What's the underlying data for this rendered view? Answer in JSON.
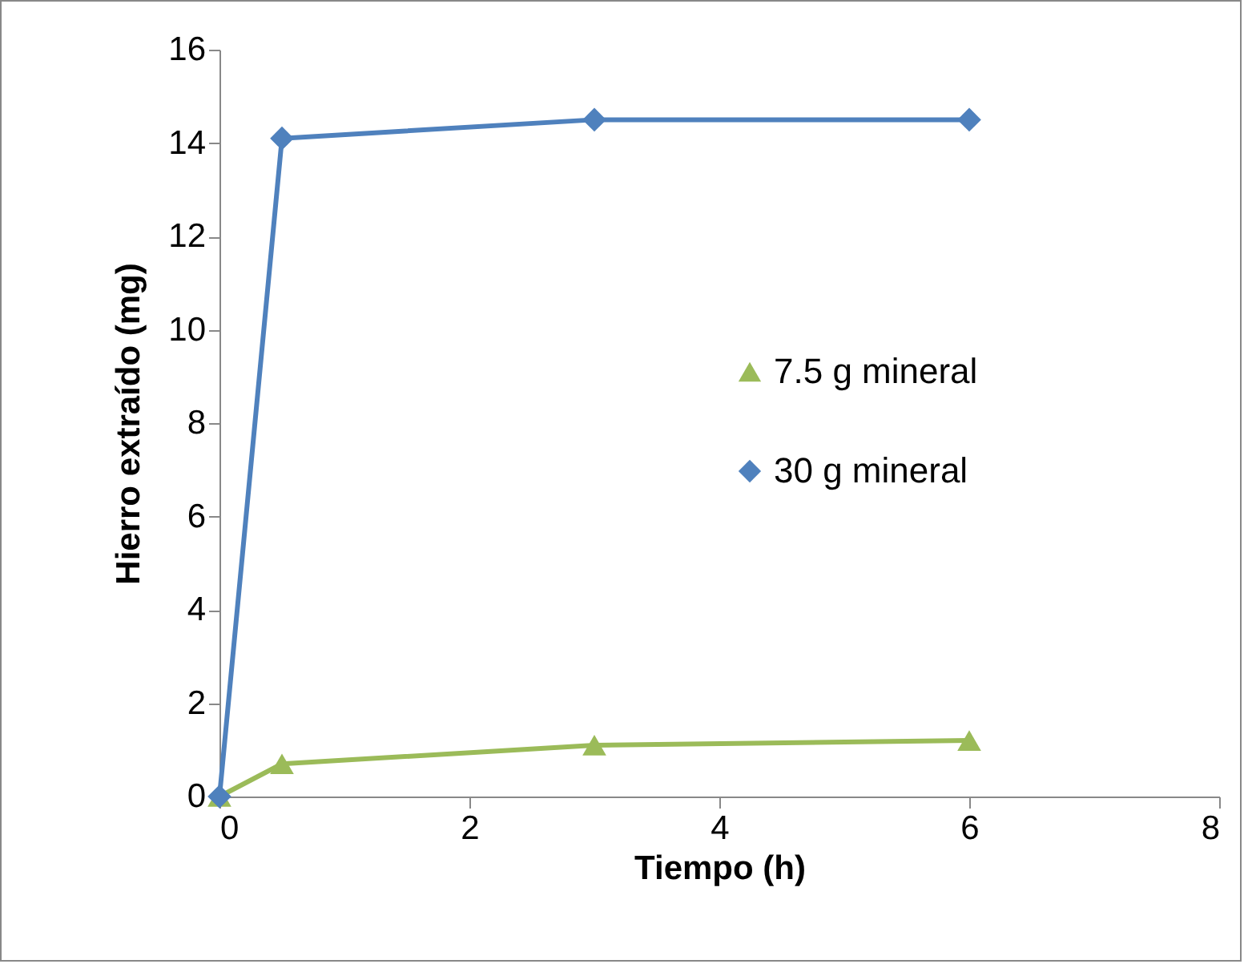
{
  "chart_data": {
    "type": "line",
    "xlabel": "Tiempo (h)",
    "ylabel": "Hierro extraído  (mg)",
    "xlim": [
      0,
      8
    ],
    "xticks": [
      0,
      2,
      4,
      6,
      8
    ],
    "ylim": [
      0,
      16
    ],
    "yticks": [
      0,
      2,
      4,
      6,
      8,
      10,
      12,
      14,
      16
    ],
    "grid": false,
    "legend": "right",
    "series": [
      {
        "name": "7.5 g mineral",
        "color": "#9bbb59",
        "marker": "triangle",
        "x": [
          0,
          0.5,
          3,
          6
        ],
        "values": [
          0,
          0.7,
          1.1,
          1.2
        ]
      },
      {
        "name": "30 g mineral",
        "color": "#4f81bd",
        "marker": "diamond",
        "x": [
          0,
          0.5,
          3,
          6
        ],
        "values": [
          0,
          14.1,
          14.5,
          14.5
        ]
      }
    ]
  }
}
